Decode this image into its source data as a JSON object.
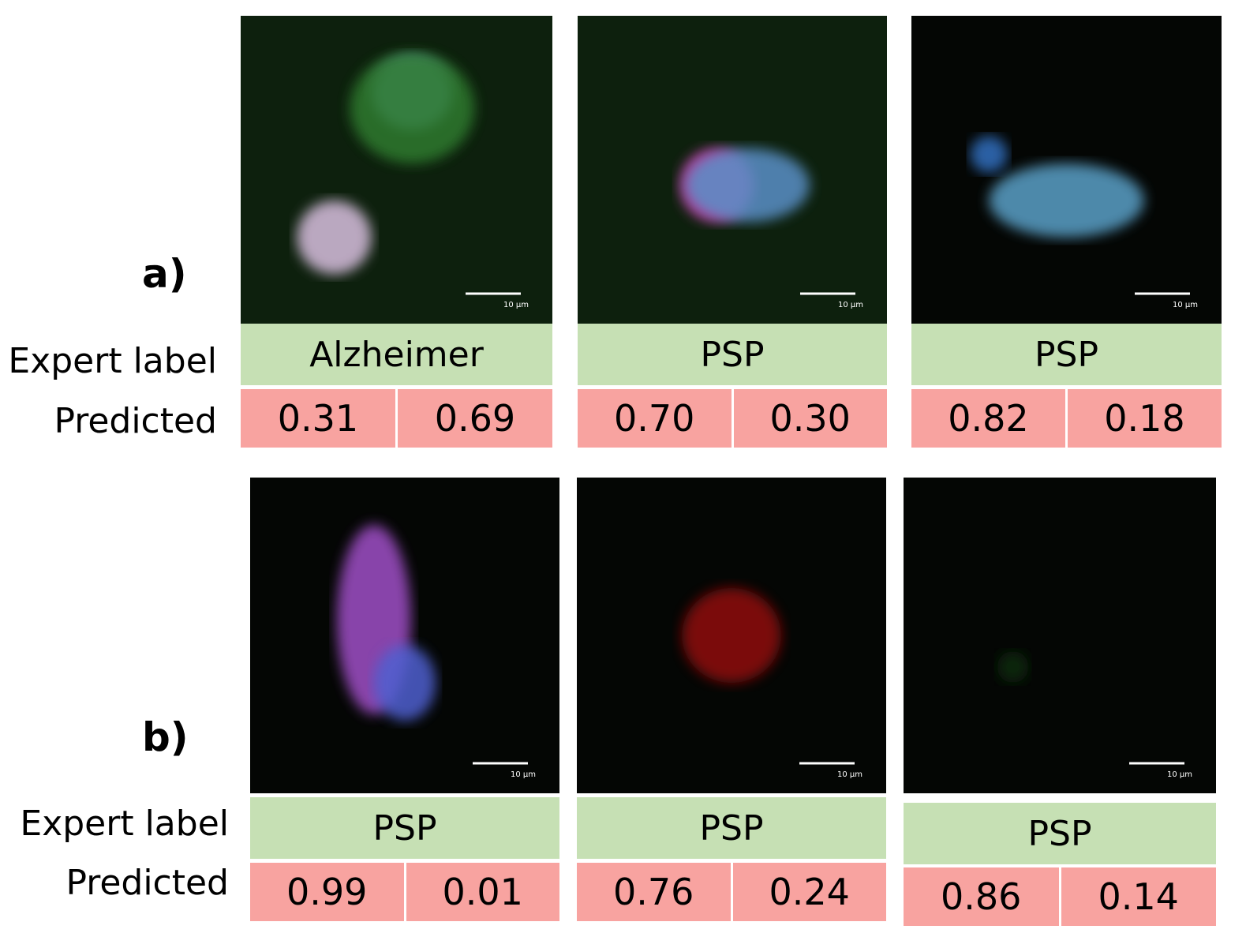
{
  "rows": [
    {
      "label": "a)",
      "expert_heading": "Expert label",
      "predicted_heading": "Predicted",
      "panels": [
        {
          "expert_label": "Alzheimer",
          "predicted": [
            "0.31",
            "0.69"
          ],
          "scale_bar": "10 μm"
        },
        {
          "expert_label": "PSP",
          "predicted": [
            "0.70",
            "0.30"
          ],
          "scale_bar": "10 μm"
        },
        {
          "expert_label": "PSP",
          "predicted": [
            "0.82",
            "0.18"
          ],
          "scale_bar": "10 μm"
        }
      ]
    },
    {
      "label": "b)",
      "expert_heading": "Expert label",
      "predicted_heading": "Predicted",
      "panels": [
        {
          "expert_label": "PSP",
          "predicted": [
            "0.99",
            "0.01"
          ],
          "scale_bar": "10 μm"
        },
        {
          "expert_label": "PSP",
          "predicted": [
            "0.76",
            "0.24"
          ],
          "scale_bar": "10 μm"
        },
        {
          "expert_label": "PSP",
          "predicted": [
            "0.86",
            "0.14"
          ],
          "scale_bar": "10 μm"
        }
      ]
    }
  ]
}
